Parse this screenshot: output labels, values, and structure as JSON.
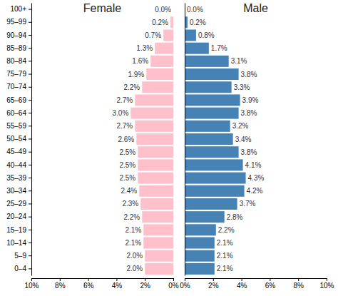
{
  "chart_data": [
    {
      "type": "bar",
      "orientation": "horizontal",
      "title": "Female",
      "categories": [
        "0–4",
        "5–9",
        "10–14",
        "15–19",
        "20–24",
        "25–29",
        "30–34",
        "35–39",
        "40–44",
        "45–49",
        "50–54",
        "55–59",
        "60–64",
        "65–69",
        "70–74",
        "75–79",
        "80–84",
        "85–89",
        "90–94",
        "95–99",
        "100+"
      ],
      "values": [
        2.0,
        2.0,
        2.1,
        2.1,
        2.2,
        2.3,
        2.4,
        2.5,
        2.5,
        2.5,
        2.6,
        2.7,
        3.0,
        2.7,
        2.2,
        1.9,
        1.6,
        1.3,
        0.7,
        0.2,
        0.0
      ],
      "value_labels": [
        "2.0%",
        "2.0%",
        "2.1%",
        "2.1%",
        "2.2%",
        "2.3%",
        "2.4%",
        "2.5%",
        "2.5%",
        "2.5%",
        "2.6%",
        "2.7%",
        "3.0%",
        "2.7%",
        "2.2%",
        "1.9%",
        "1.6%",
        "1.3%",
        "0.7%",
        "0.2%",
        "0.0%"
      ],
      "color": "#ffc0cb",
      "data_labels": true,
      "xlim": [
        10,
        0
      ],
      "xticks": [
        {
          "value": 10,
          "label": "10%"
        },
        {
          "value": 8,
          "label": "8%"
        },
        {
          "value": 6,
          "label": "6%"
        },
        {
          "value": 4,
          "label": "4%"
        },
        {
          "value": 2,
          "label": "2%"
        },
        {
          "value": 0,
          "label": "0%"
        }
      ]
    },
    {
      "type": "bar",
      "orientation": "horizontal",
      "title": "Male",
      "categories": [
        "0–4",
        "5–9",
        "10–14",
        "15–19",
        "20–24",
        "25–29",
        "30–34",
        "35–39",
        "40–44",
        "45–49",
        "50–54",
        "55–59",
        "60–64",
        "65–69",
        "70–74",
        "75–79",
        "80–84",
        "85–89",
        "90–94",
        "95–99",
        "100+"
      ],
      "values": [
        2.1,
        2.1,
        2.1,
        2.2,
        2.8,
        3.7,
        4.2,
        4.3,
        4.1,
        3.8,
        3.4,
        3.2,
        3.8,
        3.9,
        3.3,
        3.8,
        3.1,
        1.7,
        0.8,
        0.2,
        0.0
      ],
      "value_labels": [
        "2.1%",
        "2.1%",
        "2.1%",
        "2.2%",
        "2.8%",
        "3.7%",
        "4.2%",
        "4.3%",
        "4.1%",
        "3.8%",
        "3.4%",
        "3.2%",
        "3.8%",
        "3.9%",
        "3.3%",
        "3.8%",
        "3.1%",
        "1.7%",
        "0.8%",
        "0.2%",
        "0.0%"
      ],
      "color": "#4682b4",
      "data_labels": true,
      "tick_labels": "x",
      "xlim": [
        0,
        10
      ],
      "xticks": [
        {
          "value": 0,
          "label": "0%"
        },
        {
          "value": 2,
          "label": "2%"
        },
        {
          "value": 4,
          "label": "4%"
        },
        {
          "value": 6,
          "label": "6%"
        },
        {
          "value": 8,
          "label": "8%"
        },
        {
          "value": 10,
          "label": "10%"
        }
      ]
    }
  ]
}
